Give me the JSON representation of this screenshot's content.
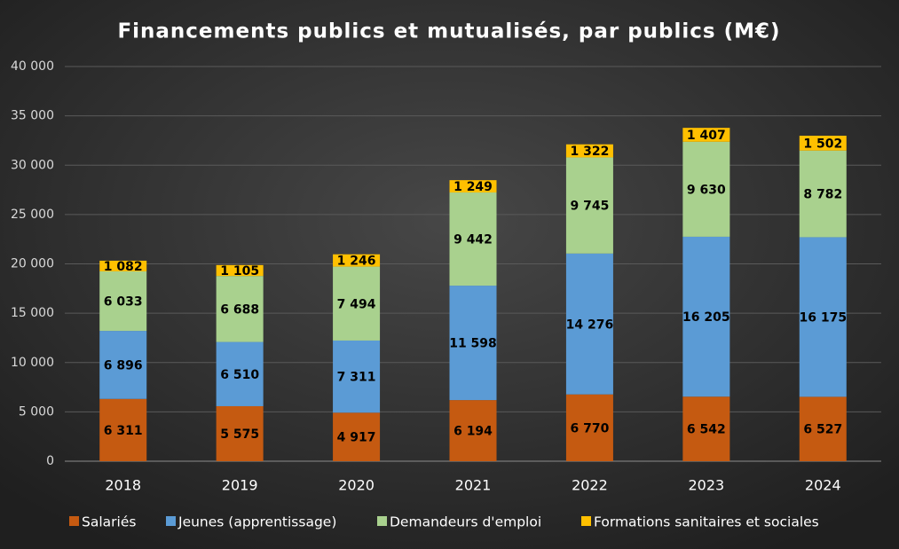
{
  "chart_data": {
    "type": "stacked_bar",
    "title": "Financements publics et mutualisés, par publics (M€)",
    "categories": [
      "2018",
      "2019",
      "2020",
      "2021",
      "2022",
      "2023",
      "2024"
    ],
    "series": [
      {
        "name": "Salariés",
        "color": "#c55a11",
        "values": [
          6311,
          5575,
          4917,
          6194,
          6770,
          6542,
          6527
        ],
        "value_labels": [
          "6 311",
          "5 575",
          "4 917",
          "6 194",
          "6 770",
          "6 542",
          "6 527"
        ]
      },
      {
        "name": "Jeunes (apprentissage)",
        "color": "#5b9bd5",
        "values": [
          6896,
          6510,
          7311,
          11598,
          14276,
          16205,
          16175
        ],
        "value_labels": [
          "6 896",
          "6 510",
          "7 311",
          "11 598",
          "14 276",
          "16 205",
          "16 175"
        ]
      },
      {
        "name": "Demandeurs d'emploi",
        "color": "#a9d18e",
        "values": [
          6033,
          6688,
          7494,
          9442,
          9745,
          9630,
          8782
        ],
        "value_labels": [
          "6 033",
          "6 688",
          "7 494",
          "9 442",
          "9 745",
          "9 630",
          "8 782"
        ]
      },
      {
        "name": "Formations sanitaires et sociales",
        "color": "#ffc000",
        "values": [
          1082,
          1105,
          1246,
          1249,
          1322,
          1407,
          1502
        ],
        "value_labels": [
          "1 082",
          "1 105",
          "1 246",
          "1 249",
          "1 322",
          "1 407",
          "1 502"
        ]
      }
    ],
    "ylim": [
      0,
      40000
    ],
    "yticks": [
      0,
      {
        "value": 5000,
        "label": "5 000"
      },
      {
        "value": 10000,
        "label": "10 000"
      },
      {
        "value": 15000,
        "label": "15 000"
      },
      {
        "value": 20000,
        "label": "20 000"
      },
      {
        "value": 25000,
        "label": "25 000"
      },
      {
        "value": 30000,
        "label": "30 000"
      },
      {
        "value": 35000,
        "label": "35 000"
      },
      {
        "value": 40000,
        "label": "40 000"
      }
    ],
    "grid": true,
    "legend": "bottom"
  }
}
